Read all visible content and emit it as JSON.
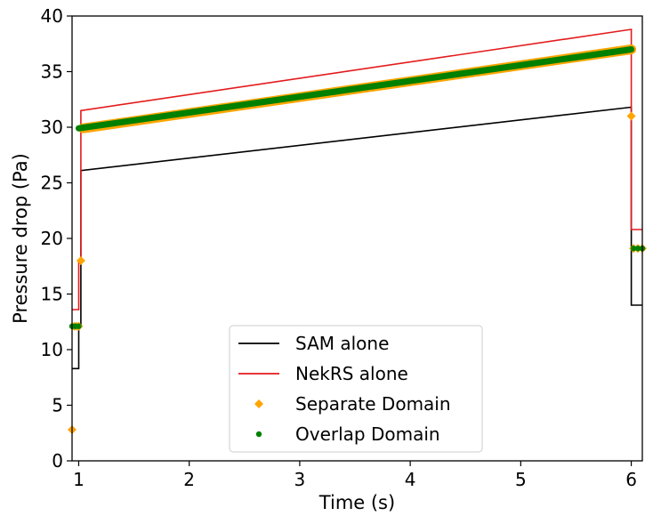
{
  "chart_data": {
    "type": "line",
    "title": "",
    "xlabel": "Time (s)",
    "ylabel": "Pressure drop (Pa)",
    "xlim": [
      0.94,
      6.1
    ],
    "ylim": [
      0,
      40
    ],
    "xticks": [
      1,
      2,
      3,
      4,
      5,
      6
    ],
    "yticks": [
      0,
      5,
      10,
      15,
      20,
      25,
      30,
      35,
      40
    ],
    "grid": false,
    "legend_position": "lower-center",
    "series": [
      {
        "name": "SAM alone",
        "style": "line",
        "color": "#000000",
        "points": [
          [
            0.94,
            8.3
          ],
          [
            1.0,
            8.3
          ],
          [
            1.0,
            12.1
          ],
          [
            1.02,
            12.1
          ],
          [
            1.02,
            26.1
          ],
          [
            6.0,
            31.8
          ],
          [
            6.0,
            14.0
          ],
          [
            6.1,
            14.0
          ]
        ]
      },
      {
        "name": "NekRS alone",
        "style": "line",
        "color": "#e41a1c",
        "points": [
          [
            0.94,
            13.6
          ],
          [
            1.0,
            13.6
          ],
          [
            1.0,
            18.0
          ],
          [
            1.02,
            18.0
          ],
          [
            1.02,
            31.5
          ],
          [
            6.0,
            38.8
          ],
          [
            6.0,
            20.8
          ],
          [
            6.1,
            20.8
          ]
        ]
      },
      {
        "name": "Separate Domain",
        "style": "diamond-markers",
        "color": "#ffa500",
        "points": [
          [
            0.94,
            2.8
          ],
          [
            0.96,
            12.1
          ],
          [
            0.98,
            12.1
          ],
          [
            1.0,
            12.1
          ],
          [
            1.02,
            18.0
          ],
          [
            1.04,
            29.9
          ],
          [
            6.0,
            37.0
          ],
          [
            6.0,
            31.0
          ],
          [
            6.02,
            19.1
          ],
          [
            6.06,
            19.1
          ],
          [
            6.1,
            19.1
          ]
        ],
        "dense_segment": {
          "x_start": 1.04,
          "x_end": 6.0,
          "y_start": 29.9,
          "y_end": 37.0
        }
      },
      {
        "name": "Overlap Domain",
        "style": "dot-markers",
        "color": "#008000",
        "points": [
          [
            0.94,
            12.1
          ],
          [
            0.97,
            12.1
          ],
          [
            1.0,
            12.1
          ],
          [
            6.02,
            19.1
          ],
          [
            6.06,
            19.1
          ],
          [
            6.1,
            19.1
          ]
        ],
        "dense_segment": {
          "x_start": 1.0,
          "x_end": 6.0,
          "y_start": 29.9,
          "y_end": 37.0
        }
      }
    ]
  }
}
